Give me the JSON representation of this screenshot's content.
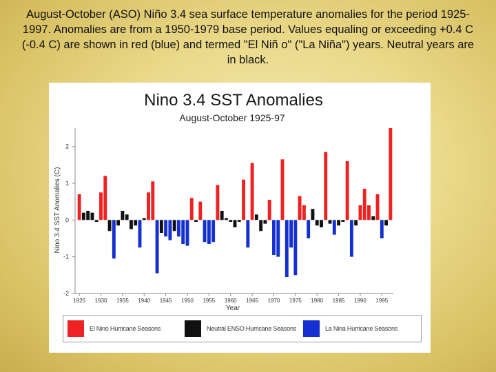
{
  "caption": "August-October (ASO) Niño 3.4 sea surface temperature anomalies for the period 1925-1997. Anomalies are from a 1950-1979 base period. Values equaling or exceeding +0.4 C (-0.4 C) are shown in red (blue) and termed \"El Niñ o\" (\"La Niña\") years. Neutral years are in black.",
  "chart_data": {
    "type": "bar",
    "title": "Nino 3.4 SST Anomalies",
    "subtitle": "August-October 1925-97",
    "xlabel": "Year",
    "ylabel": "Nino 3.4 SST Anomalies (C)",
    "ylim": [
      -2,
      2.5
    ],
    "yticks": [
      2,
      1,
      0,
      -1,
      -2
    ],
    "xticks": [
      1925,
      1930,
      1935,
      1940,
      1945,
      1950,
      1955,
      1960,
      1965,
      1970,
      1975,
      1980,
      1985,
      1990,
      1995
    ],
    "years": [
      1925,
      1926,
      1927,
      1928,
      1929,
      1930,
      1931,
      1932,
      1933,
      1934,
      1935,
      1936,
      1937,
      1938,
      1939,
      1940,
      1941,
      1942,
      1943,
      1944,
      1945,
      1946,
      1947,
      1948,
      1949,
      1950,
      1951,
      1952,
      1953,
      1954,
      1955,
      1956,
      1957,
      1958,
      1959,
      1960,
      1961,
      1962,
      1963,
      1964,
      1965,
      1966,
      1967,
      1968,
      1969,
      1970,
      1971,
      1972,
      1973,
      1974,
      1975,
      1976,
      1977,
      1978,
      1979,
      1980,
      1981,
      1982,
      1983,
      1984,
      1985,
      1986,
      1987,
      1988,
      1989,
      1990,
      1991,
      1992,
      1993,
      1994,
      1995,
      1996,
      1997
    ],
    "values": [
      0.7,
      0.2,
      0.25,
      0.2,
      -0.05,
      0.75,
      1.2,
      -0.3,
      -1.05,
      -0.15,
      0.25,
      0.15,
      -0.25,
      -0.15,
      -0.75,
      0.05,
      0.75,
      1.05,
      -1.45,
      -0.35,
      -0.45,
      -0.55,
      -0.3,
      -0.45,
      -0.65,
      -0.7,
      0.6,
      -0.05,
      0.5,
      -0.6,
      -0.65,
      -0.6,
      0.95,
      0.25,
      0.05,
      -0.05,
      -0.2,
      -0.05,
      1.1,
      -0.75,
      1.55,
      0.15,
      -0.3,
      -0.1,
      0.55,
      -0.95,
      -1.0,
      1.65,
      -1.55,
      -0.75,
      -1.5,
      0.65,
      0.4,
      -0.5,
      0.3,
      -0.15,
      -0.2,
      1.85,
      -0.1,
      -0.4,
      -0.15,
      -0.05,
      1.6,
      -1.0,
      -0.15,
      0.4,
      0.85,
      0.4,
      0.1,
      0.7,
      -0.5,
      -0.15,
      2.5
    ],
    "categories_legend": [
      "El Nino Hurricane Seasons",
      "Neutral ENSO Hurricane Seasons",
      "La Nina Hurricane Seasons"
    ],
    "colors": {
      "el_nino": "#ee2222",
      "neutral": "#111111",
      "la_nina": "#1530d0",
      "axis": "#8a8a8a"
    },
    "threshold": 0.4
  }
}
